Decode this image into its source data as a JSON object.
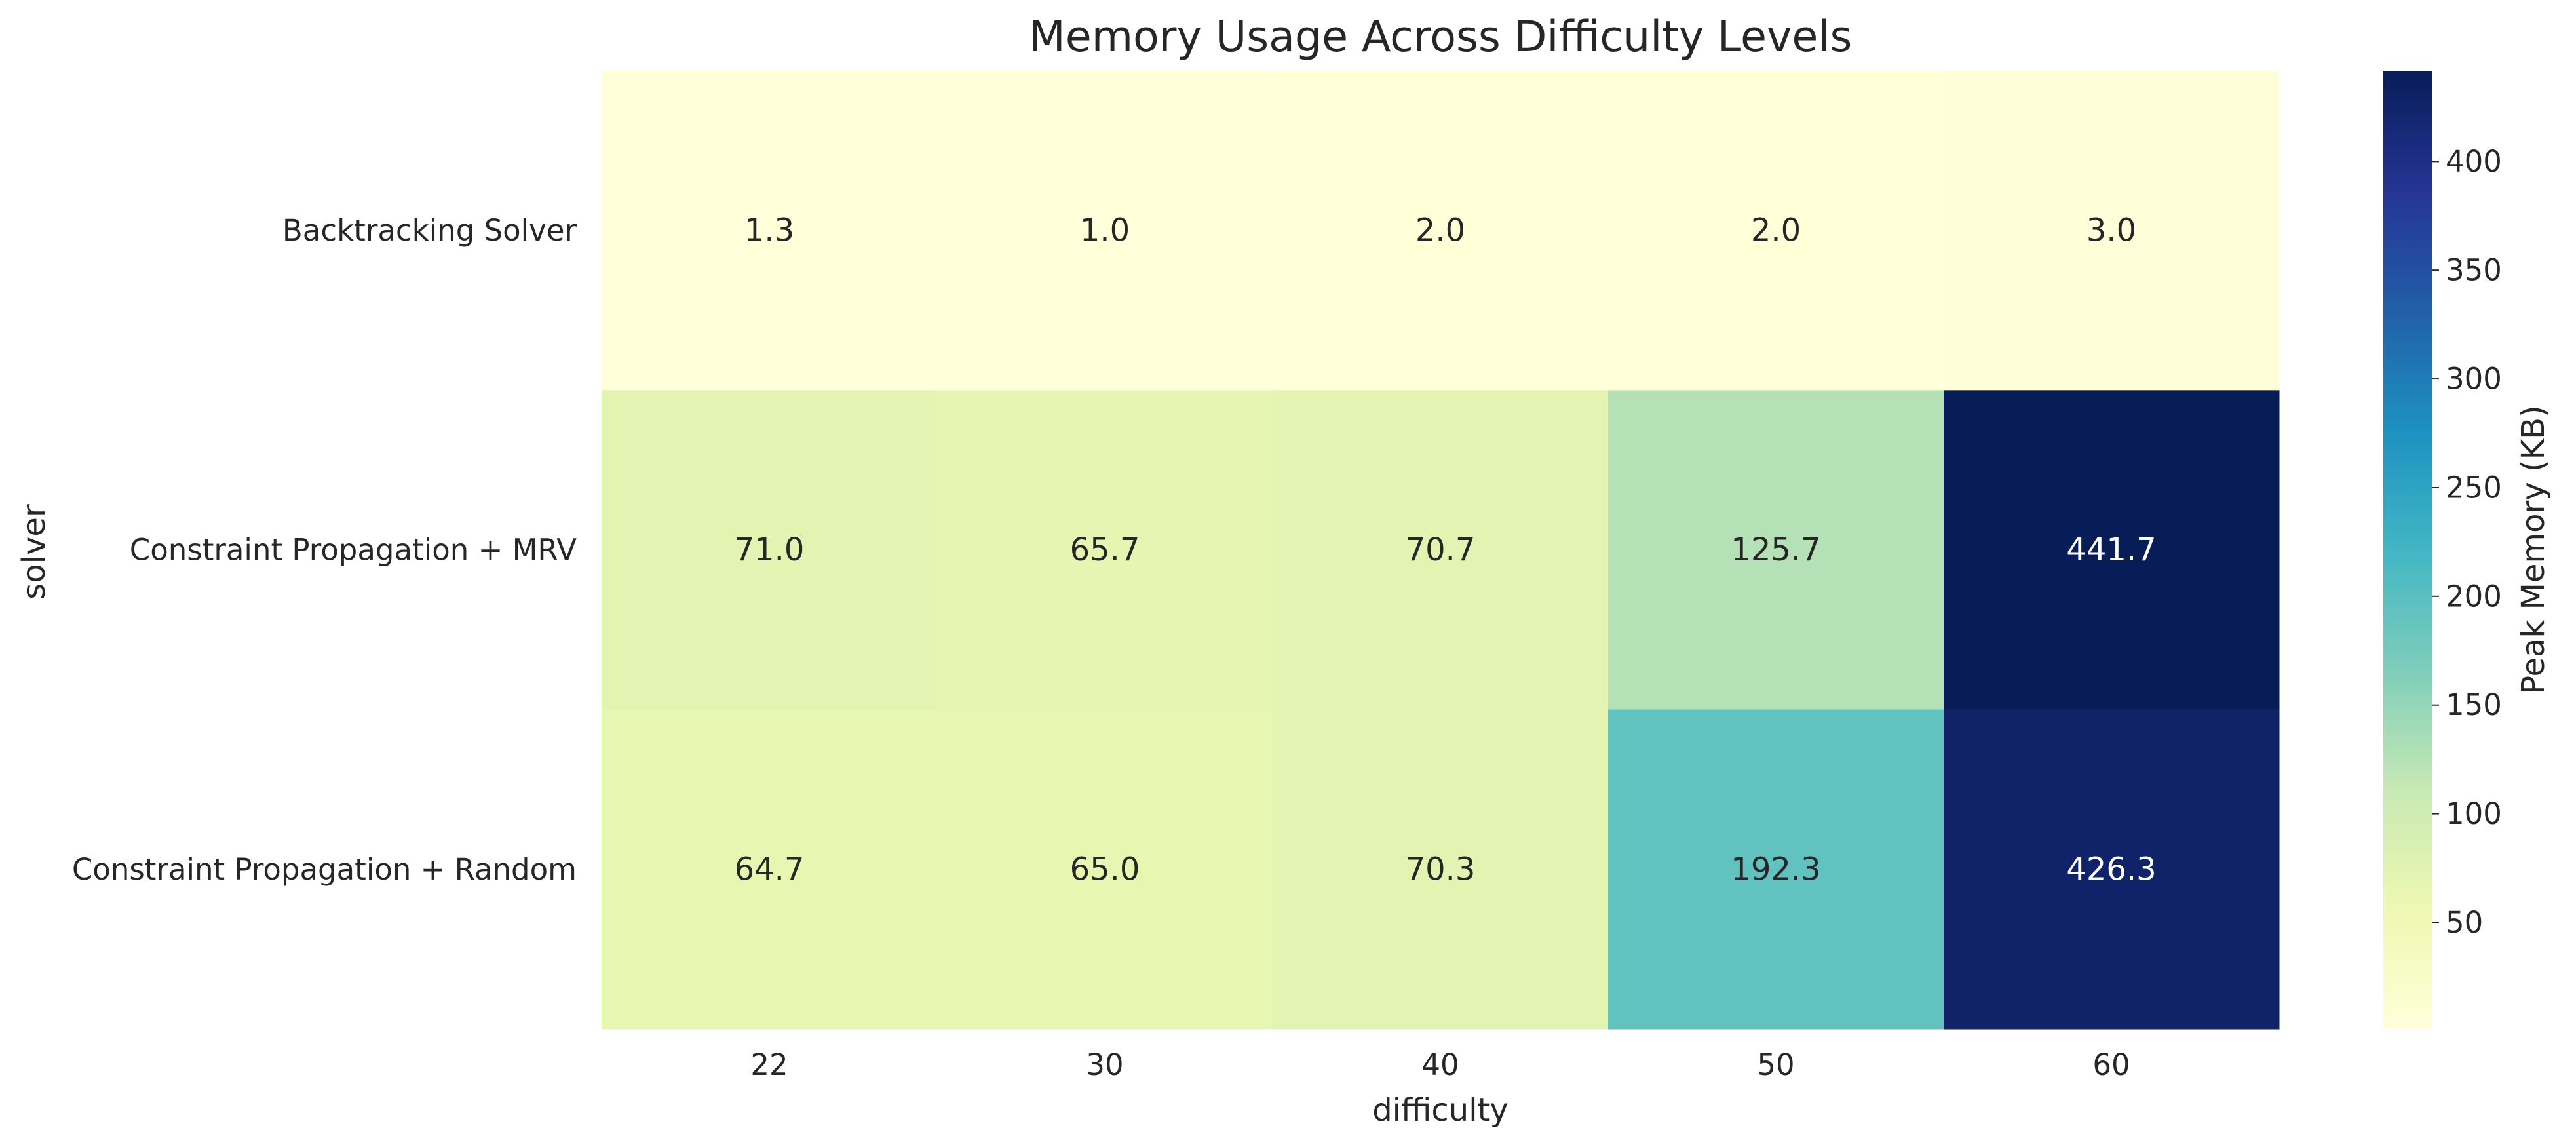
{
  "chart_data": {
    "type": "heatmap",
    "title": "Memory Usage Across Difficulty Levels",
    "xlabel": "difficulty",
    "ylabel": "solver",
    "x_categories": [
      "22",
      "30",
      "40",
      "50",
      "60"
    ],
    "y_categories": [
      "Backtracking Solver",
      "Constraint Propagation + MRV",
      "Constraint Propagation + Random"
    ],
    "values": [
      [
        1.3,
        1.0,
        2.0,
        2.0,
        3.0
      ],
      [
        71.0,
        65.7,
        70.7,
        125.7,
        441.7
      ],
      [
        64.7,
        65.0,
        70.3,
        192.3,
        426.3
      ]
    ],
    "value_labels": [
      [
        "1.3",
        "1.0",
        "2.0",
        "2.0",
        "3.0"
      ],
      [
        "71.0",
        "65.7",
        "70.7",
        "125.7",
        "441.7"
      ],
      [
        "64.7",
        "65.0",
        "70.3",
        "192.3",
        "426.3"
      ]
    ],
    "colormap": "YlGnBu",
    "colorbar": {
      "label": "Peak Memory (KB)",
      "range": [
        1.0,
        441.7
      ],
      "ticks": [
        50,
        100,
        150,
        200,
        250,
        300,
        350,
        400
      ],
      "tick_labels": [
        "50",
        "100",
        "150",
        "200",
        "250",
        "300",
        "350",
        "400"
      ]
    }
  }
}
